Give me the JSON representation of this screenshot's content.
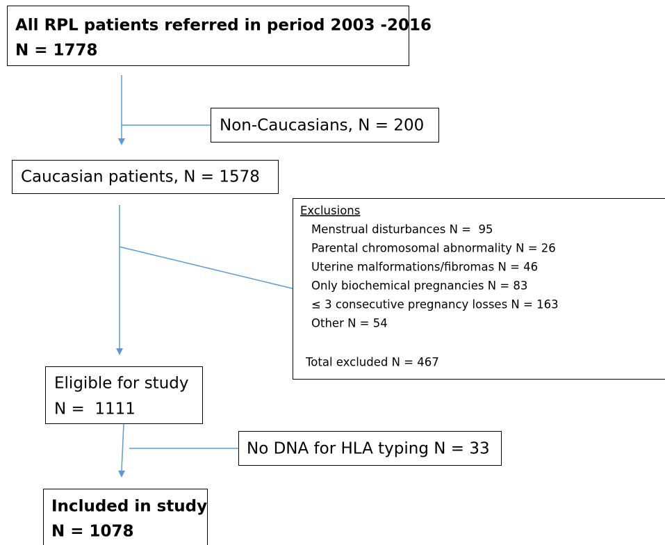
{
  "nodes": [
    {
      "lines": [
        "All RPL patients referred in period 2003 -2016",
        "N = 1778"
      ]
    },
    {
      "lines": [
        "Non-Caucasians, N = 200"
      ]
    },
    {
      "lines": [
        "Caucasian patients, N = 1578"
      ]
    },
    {
      "heading": "Exclusions",
      "items": [
        "Menstrual disturbances N =  95",
        "Parental chromosomal abnormality N = 26",
        "Uterine malformations/fibromas N = 46",
        "Only biochemical pregnancies N = 83",
        "≤ 3 consecutive pregnancy losses N = 163",
        "Other N = 54"
      ],
      "total": "Total excluded N = 467"
    },
    {
      "lines": [
        "Eligible for study",
        "N =  1111"
      ]
    },
    {
      "lines": [
        "No DNA for HLA typing N = 33"
      ]
    },
    {
      "lines": [
        "Included in study",
        "N = 1078"
      ]
    }
  ]
}
